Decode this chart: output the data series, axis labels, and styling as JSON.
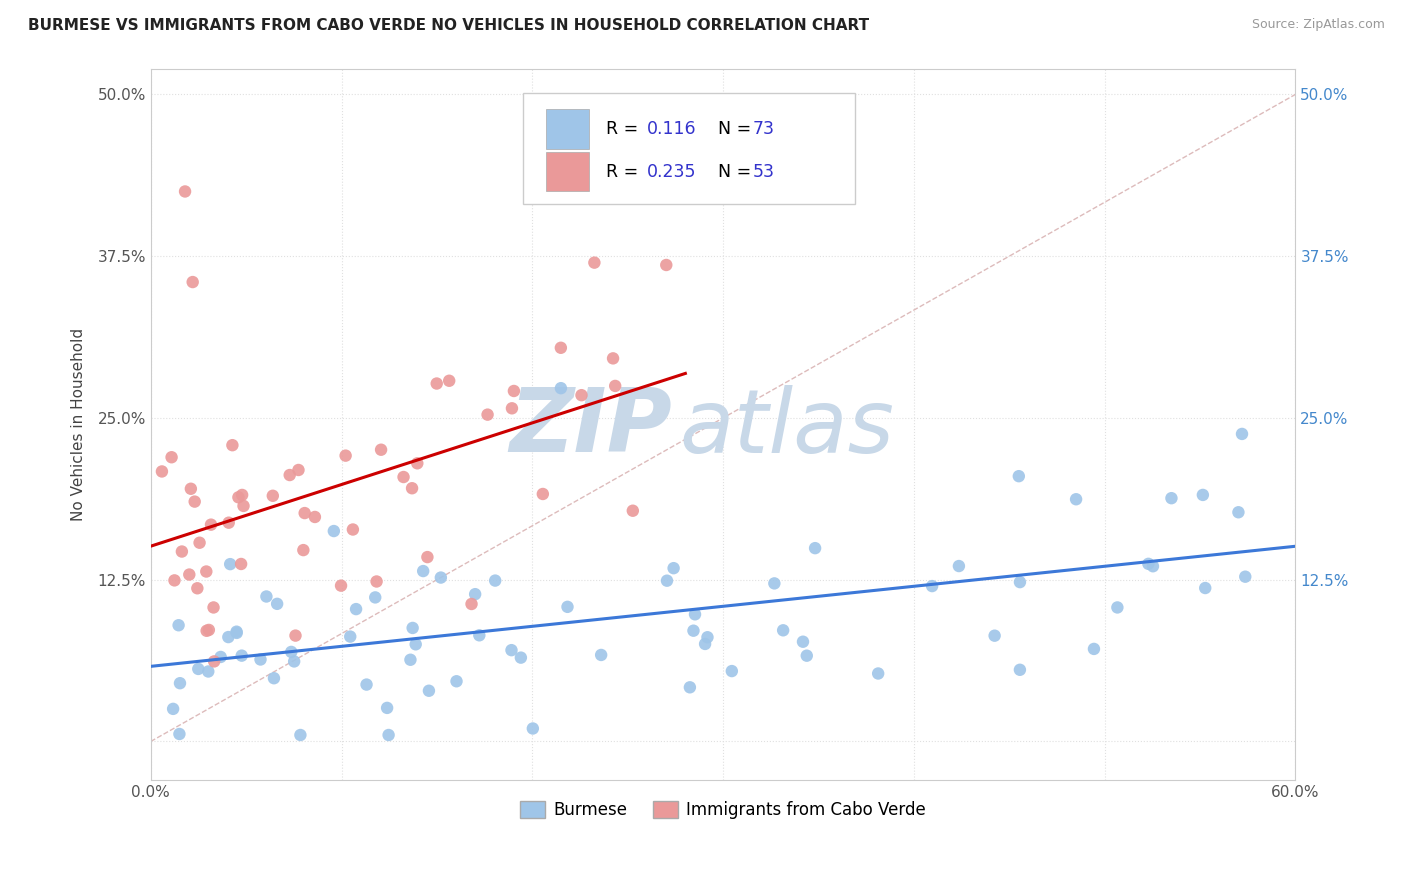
{
  "title": "BURMESE VS IMMIGRANTS FROM CABO VERDE NO VEHICLES IN HOUSEHOLD CORRELATION CHART",
  "source": "Source: ZipAtlas.com",
  "ylabel": "No Vehicles in Household",
  "x_min": 0.0,
  "x_max": 0.6,
  "y_min": -0.03,
  "y_max": 0.52,
  "x_ticks": [
    0.0,
    0.1,
    0.2,
    0.3,
    0.4,
    0.5,
    0.6
  ],
  "x_tick_labels": [
    "0.0%",
    "",
    "",
    "",
    "",
    "",
    "60.0%"
  ],
  "y_ticks": [
    0.0,
    0.125,
    0.25,
    0.375,
    0.5
  ],
  "y_tick_labels": [
    "",
    "12.5%",
    "25.0%",
    "37.5%",
    "50.0%"
  ],
  "blue_R": 0.116,
  "blue_N": 73,
  "pink_R": 0.235,
  "pink_N": 53,
  "blue_color": "#9fc5e8",
  "pink_color": "#ea9999",
  "blue_line_color": "#3c78d8",
  "pink_line_color": "#cc0000",
  "diag_color": "#ddbbbb",
  "grid_color": "#e0e0e0",
  "title_color": "#222222",
  "legend_text_color": "#3333cc",
  "right_tick_color": "#4488cc",
  "watermark_zip_color": "#c8d8e8",
  "watermark_atlas_color": "#c8d8e8"
}
